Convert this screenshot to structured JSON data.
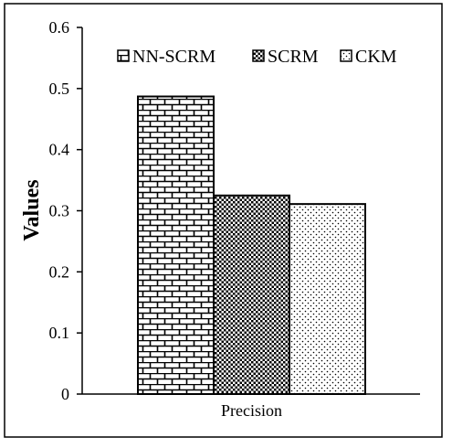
{
  "chart_data": {
    "type": "bar",
    "categories": [
      "Precision"
    ],
    "series": [
      {
        "name": "NN-SCRM",
        "values": [
          0.487
        ],
        "pattern": "brick"
      },
      {
        "name": "SCRM",
        "values": [
          0.325
        ],
        "pattern": "checker"
      },
      {
        "name": "CKM",
        "values": [
          0.311
        ],
        "pattern": "dots"
      }
    ],
    "title": "",
    "xlabel": "",
    "ylabel": "Values",
    "ylim": [
      0,
      0.6
    ],
    "yticks": [
      "0",
      "0.1",
      "0.2",
      "0.3",
      "0.4",
      "0.5",
      "0.6"
    ],
    "grid": false,
    "legend_position": "top-right",
    "colors": {
      "fill": "#ffffff",
      "stroke": "#000000"
    }
  }
}
